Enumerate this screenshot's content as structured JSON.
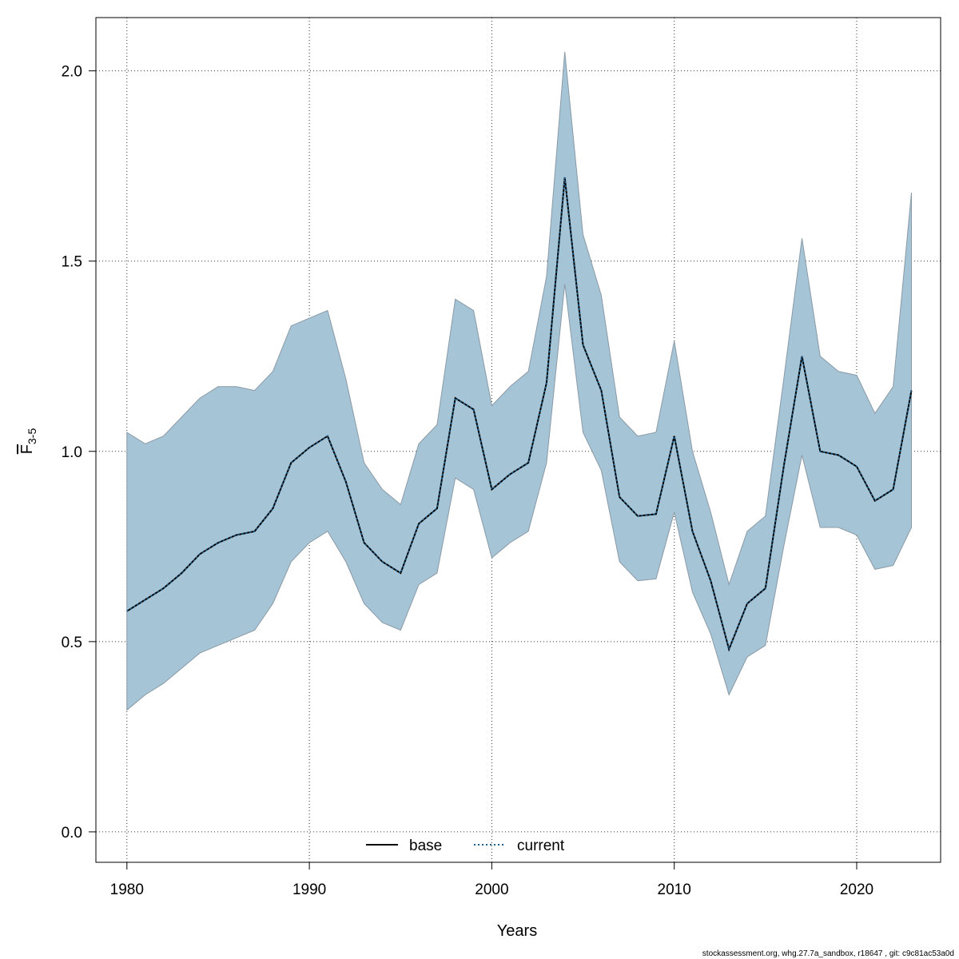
{
  "chart_data": {
    "type": "line",
    "xlabel": "Years",
    "ylabel_main": "F",
    "ylabel_sub": "3-5",
    "xlim": [
      1978.3,
      2024.6
    ],
    "ylim": [
      -0.08,
      2.14
    ],
    "x_ticks": [
      1980,
      1990,
      2000,
      2010,
      2020
    ],
    "y_ticks": [
      0.0,
      0.5,
      1.0,
      1.5,
      2.0
    ],
    "y_tick_labels": [
      "0.0",
      "0.5",
      "1.0",
      "1.5",
      "2.0"
    ],
    "grid": true,
    "legend_position": "bottom-center",
    "x": [
      1980,
      1981,
      1982,
      1983,
      1984,
      1985,
      1986,
      1987,
      1988,
      1989,
      1990,
      1991,
      1992,
      1993,
      1994,
      1995,
      1996,
      1997,
      1998,
      1999,
      2000,
      2001,
      2002,
      2003,
      2004,
      2005,
      2006,
      2007,
      2008,
      2009,
      2010,
      2011,
      2012,
      2013,
      2014,
      2015,
      2016,
      2017,
      2018,
      2019,
      2020,
      2021,
      2022,
      2023
    ],
    "series": [
      {
        "name": "base",
        "style": "solid",
        "color": "#000000",
        "values": [
          0.58,
          0.61,
          0.64,
          0.68,
          0.73,
          0.76,
          0.78,
          0.79,
          0.85,
          0.97,
          1.01,
          1.04,
          0.92,
          0.76,
          0.71,
          0.68,
          0.81,
          0.85,
          1.14,
          1.11,
          0.9,
          0.94,
          0.97,
          1.18,
          1.72,
          1.28,
          1.16,
          0.88,
          0.83,
          0.835,
          1.04,
          0.79,
          0.66,
          0.48,
          0.6,
          0.64,
          0.96,
          1.25,
          1.0,
          0.99,
          0.96,
          0.87,
          0.9,
          1.16
        ]
      },
      {
        "name": "current",
        "style": "dotted",
        "color": "#1f5f8b",
        "values": [
          0.58,
          0.61,
          0.64,
          0.68,
          0.73,
          0.76,
          0.78,
          0.79,
          0.85,
          0.97,
          1.01,
          1.04,
          0.92,
          0.76,
          0.71,
          0.68,
          0.81,
          0.85,
          1.14,
          1.11,
          0.9,
          0.94,
          0.97,
          1.18,
          1.72,
          1.28,
          1.16,
          0.88,
          0.83,
          0.835,
          1.04,
          0.79,
          0.66,
          0.48,
          0.6,
          0.64,
          0.96,
          1.25,
          1.0,
          0.99,
          0.96,
          0.87,
          0.9,
          1.16
        ]
      }
    ],
    "confidence_band": {
      "color": "#a5c4d6",
      "lower": [
        0.32,
        0.36,
        0.39,
        0.43,
        0.47,
        0.49,
        0.51,
        0.53,
        0.6,
        0.71,
        0.76,
        0.79,
        0.71,
        0.6,
        0.55,
        0.53,
        0.65,
        0.68,
        0.93,
        0.9,
        0.72,
        0.76,
        0.79,
        0.97,
        1.44,
        1.05,
        0.95,
        0.71,
        0.66,
        0.665,
        0.84,
        0.63,
        0.52,
        0.36,
        0.46,
        0.49,
        0.75,
        0.99,
        0.8,
        0.8,
        0.78,
        0.69,
        0.7,
        0.8
      ],
      "upper": [
        1.05,
        1.02,
        1.04,
        1.09,
        1.14,
        1.17,
        1.17,
        1.16,
        1.21,
        1.33,
        1.35,
        1.37,
        1.19,
        0.97,
        0.9,
        0.86,
        1.02,
        1.07,
        1.4,
        1.37,
        1.12,
        1.17,
        1.21,
        1.46,
        2.05,
        1.57,
        1.41,
        1.09,
        1.04,
        1.05,
        1.29,
        1.0,
        0.84,
        0.65,
        0.79,
        0.83,
        1.19,
        1.56,
        1.25,
        1.21,
        1.2,
        1.1,
        1.17,
        1.68
      ]
    }
  },
  "footer": "stockassessment.org, whg.27.7a_sandbox, r18647 , git: c9c81ac53a0d"
}
